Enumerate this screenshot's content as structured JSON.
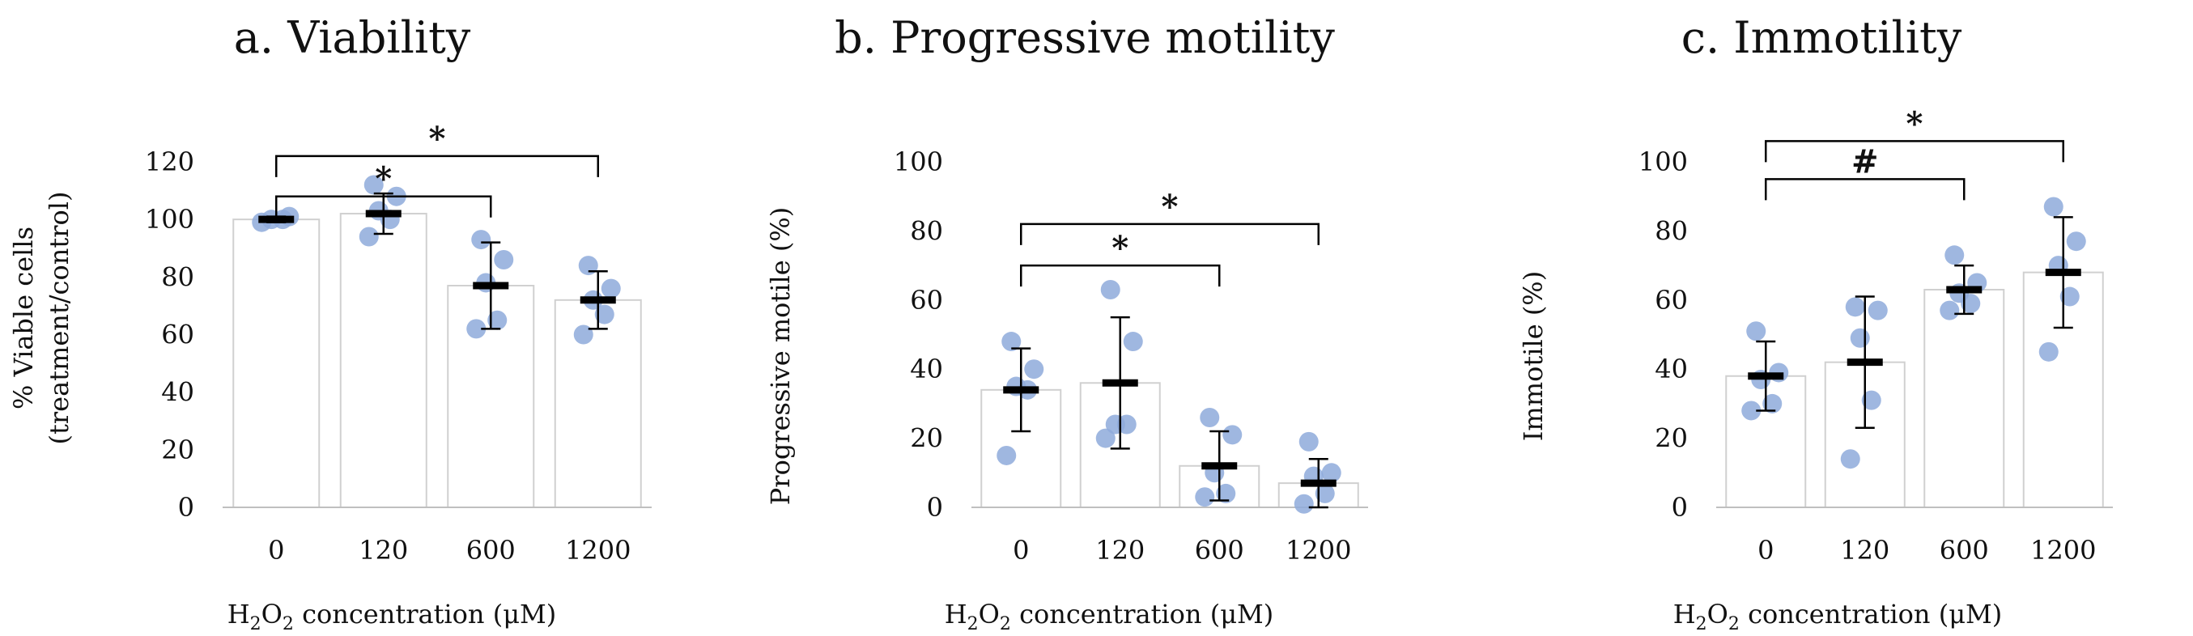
{
  "chart_data": [
    {
      "type": "bar",
      "title": "a. Viability",
      "ylabel_line1": "% Viable cells",
      "ylabel_line2": "(treatment/control)",
      "xlabel": {
        "prefix": "H",
        "sub1": "2",
        "mid": "O",
        "sub2": "2",
        "suffix": " concentration (μM)"
      },
      "ylim": [
        0,
        120
      ],
      "yticks": [
        0,
        20,
        40,
        60,
        80,
        100,
        120
      ],
      "categories": [
        "0",
        "120",
        "600",
        "1200"
      ],
      "values": [
        100,
        102,
        77,
        72
      ],
      "error": [
        1,
        7,
        15,
        10
      ],
      "points": [
        [
          99,
          100,
          100,
          101
        ],
        [
          94,
          100,
          103,
          108,
          112
        ],
        [
          62,
          65,
          78,
          86,
          93
        ],
        [
          60,
          67,
          72,
          76,
          84
        ]
      ],
      "brackets": [
        {
          "from": 0,
          "to": 2,
          "label": "*",
          "y": 108
        },
        {
          "from": 0,
          "to": 3,
          "label": "*",
          "y": 122
        }
      ]
    },
    {
      "type": "bar",
      "title": "b. Progressive motility",
      "ylabel_line1": "Progressive motile (%)",
      "ylabel_line2": "",
      "xlabel": {
        "prefix": "H",
        "sub1": "2",
        "mid": "O",
        "sub2": "2",
        "suffix": " concentration (μM)"
      },
      "ylim": [
        0,
        100
      ],
      "yticks": [
        0,
        20,
        40,
        60,
        80,
        100
      ],
      "categories": [
        "0",
        "120",
        "600",
        "1200"
      ],
      "values": [
        34,
        36,
        12,
        7
      ],
      "error": [
        12,
        19,
        10,
        7
      ],
      "points": [
        [
          15,
          34,
          35,
          40,
          48
        ],
        [
          20,
          24,
          24,
          48,
          63
        ],
        [
          3,
          4,
          10,
          21,
          26
        ],
        [
          1,
          4,
          9,
          10,
          19
        ]
      ],
      "brackets": [
        {
          "from": 0,
          "to": 2,
          "label": "*",
          "y": 70
        },
        {
          "from": 0,
          "to": 3,
          "label": "*",
          "y": 82
        }
      ]
    },
    {
      "type": "bar",
      "title": "c. Immotility",
      "ylabel_line1": "Immotile (%)",
      "ylabel_line2": "",
      "xlabel": {
        "prefix": "H",
        "sub1": "2",
        "mid": "O",
        "sub2": "2",
        "suffix": " concentration (μM)"
      },
      "ylim": [
        0,
        100
      ],
      "yticks": [
        0,
        20,
        40,
        60,
        80,
        100
      ],
      "categories": [
        "0",
        "120",
        "600",
        "1200"
      ],
      "values": [
        38,
        42,
        63,
        68
      ],
      "error": [
        10,
        19,
        7,
        16
      ],
      "points": [
        [
          28,
          30,
          37,
          39,
          51
        ],
        [
          14,
          31,
          49,
          57,
          58
        ],
        [
          57,
          59,
          62,
          65,
          73
        ],
        [
          45,
          61,
          70,
          77,
          87
        ]
      ],
      "brackets": [
        {
          "from": 0,
          "to": 2,
          "label": "#",
          "y": 95
        },
        {
          "from": 0,
          "to": 3,
          "label": "*",
          "y": 106
        }
      ]
    }
  ]
}
